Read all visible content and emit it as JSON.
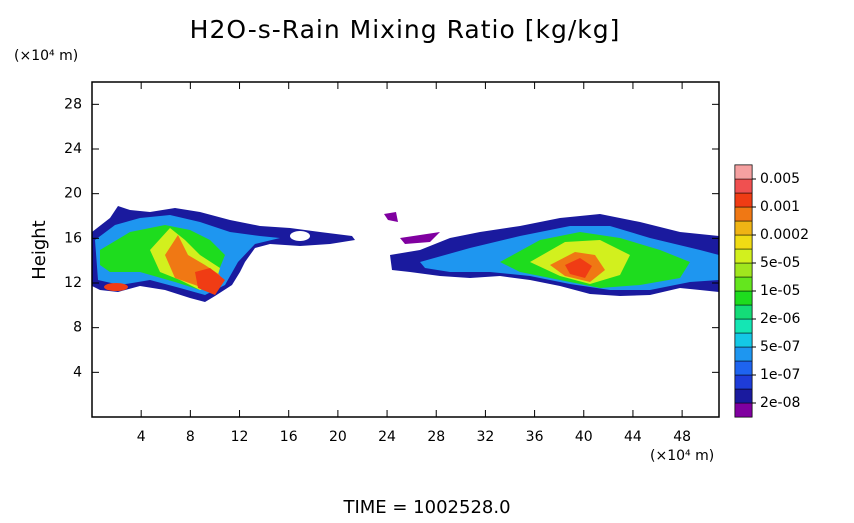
{
  "chart_data": {
    "type": "contour",
    "title": "H2O-s-Rain Mixing Ratio [kg/kg]",
    "y_label": "Height",
    "y_unit": "(×10⁴ m)",
    "x_unit": "(×10⁴ m)",
    "footer": "TIME = 1002528.0",
    "xlim": [
      0,
      51
    ],
    "xticks": [
      4,
      8,
      12,
      16,
      20,
      24,
      28,
      32,
      36,
      40,
      44,
      48
    ],
    "ylim": [
      0,
      30
    ],
    "yticks": [
      4,
      8,
      12,
      16,
      20,
      24,
      28
    ],
    "colorbar": {
      "colors": [
        "#8000a0",
        "#1a1a9e",
        "#1e3cd8",
        "#1e64f0",
        "#1e96f0",
        "#14c8e6",
        "#14e6b4",
        "#14dc78",
        "#1edc1e",
        "#64e61e",
        "#a0e61e",
        "#d2f01e",
        "#f0dc14",
        "#f0b414",
        "#f07814",
        "#f03c14",
        "#f05050",
        "#f5a0a0"
      ],
      "ticks": [
        {
          "value": 2e-08,
          "label": "2e-08"
        },
        {
          "value": 1e-07,
          "label": "1e-07"
        },
        {
          "value": 5e-07,
          "label": "5e-07"
        },
        {
          "value": 2e-06,
          "label": "2e-06"
        },
        {
          "value": 1e-05,
          "label": "1e-05"
        },
        {
          "value": 5e-05,
          "label": "5e-05"
        },
        0.0002,
        0.001,
        0.005
      ]
    }
  }
}
